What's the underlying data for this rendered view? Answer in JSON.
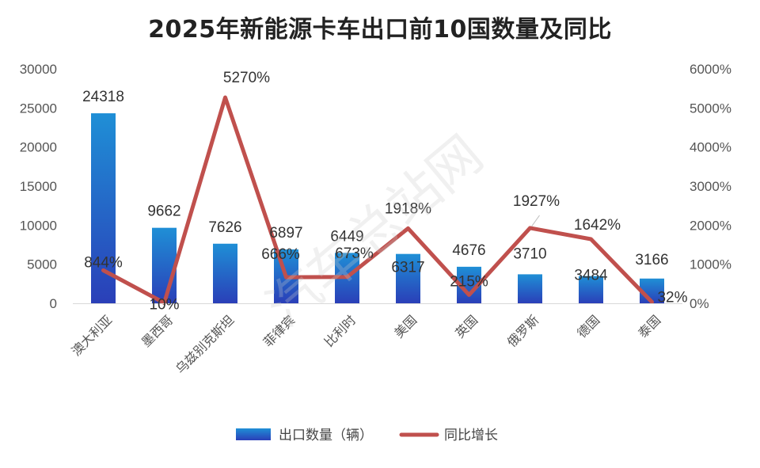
{
  "chart_data": {
    "type": "bar+line",
    "title": "2025年新能源卡车出口前10国数量及同比",
    "categories": [
      "澳大利亚",
      "墨西哥",
      "乌兹别克斯坦",
      "菲律宾",
      "比利时",
      "美国",
      "英国",
      "俄罗斯",
      "德国",
      "泰国"
    ],
    "series": [
      {
        "name": "出口数量（辆）",
        "type": "bar",
        "axis": "left",
        "values": [
          24318,
          9662,
          7626,
          6897,
          6449,
          6317,
          4676,
          3710,
          3484,
          3166
        ],
        "labels": [
          "24318",
          "9662",
          "7626",
          "6897",
          "6449",
          "6317",
          "4676",
          "3710",
          "3484",
          "3166"
        ]
      },
      {
        "name": "同比增长",
        "type": "line",
        "axis": "right",
        "values": [
          844,
          10,
          5270,
          666,
          673,
          1918,
          215,
          1927,
          1642,
          32
        ],
        "labels": [
          "844%",
          "10%",
          "5270%",
          "666%",
          "673%",
          "1918%",
          "215%",
          "1927%",
          "1642%",
          "32%"
        ]
      }
    ],
    "y_left": {
      "ylim": [
        0,
        30000
      ],
      "ticks": [
        "0",
        "5000",
        "10000",
        "15000",
        "20000",
        "25000",
        "30000"
      ]
    },
    "y_right": {
      "ylim": [
        0,
        6000
      ],
      "ticks": [
        "0%",
        "1000%",
        "2000%",
        "3000%",
        "4000%",
        "5000%",
        "6000%"
      ]
    },
    "legend": {
      "position": "bottom",
      "items": [
        "出口数量（辆）",
        "同比增长"
      ]
    },
    "watermark": "汽车总站网",
    "colors": {
      "bar_top": "#1F8FD6",
      "bar_bottom": "#2A3FB8",
      "line": "#C0504D"
    }
  }
}
